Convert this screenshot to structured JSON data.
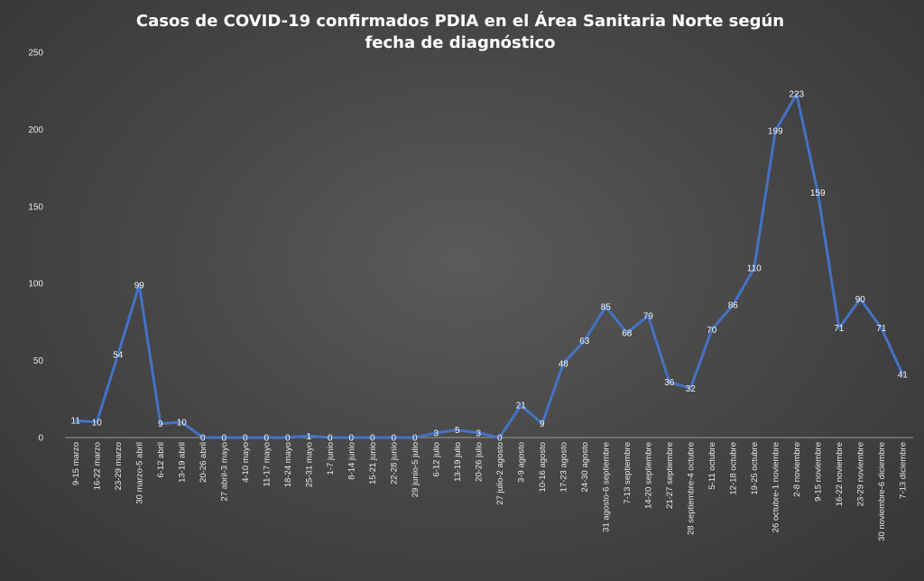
{
  "chart_data": {
    "type": "line",
    "title": "Casos de COVID-19 confirmados PDIA en el Área Sanitaria Norte según fecha de diagnóstico",
    "xlabel": "",
    "ylabel": "",
    "ylim": [
      0,
      250
    ],
    "yticks": [
      0,
      50,
      100,
      150,
      200,
      250
    ],
    "grid": false,
    "legend": "none",
    "line_color": "#4472c4",
    "categories": [
      "9-15 marzo",
      "16-22 marzo",
      "23-29 marzo",
      "30 marzo-5 abril",
      "6-12 abril",
      "13-19 abril",
      "20-26 abril",
      "27 abril-3 mayo",
      "4-10 mayo",
      "11-17 mayo",
      "18-24 mayo",
      "25-31 mayo",
      "1-7 junio",
      "8-14 junio",
      "15-21 junio",
      "22-28 junio",
      "29 junio-5 julio",
      "6-12 julio",
      "13-19 julio",
      "20-26 julio",
      "27 julio-2 agosto",
      "3-9 agosto",
      "10-16 agosto",
      "17-23 agosto",
      "24-30 agosto",
      "31 agosto-6 septiembre",
      "7-13 septiembre",
      "14-20 septiembre",
      "21-27 septiembre",
      "28 septiembre-4 octubre",
      "5-11 octubre",
      "12-18 octubre",
      "19-25 octubre",
      "26 octubre-1 noviembre",
      "2-8 noviembre",
      "9-15 noviembre",
      "16-22 noviembre",
      "23-29 noviembre",
      "30 noviembre-6 diciembre",
      "7-13 diciembre"
    ],
    "values": [
      11,
      10,
      54,
      99,
      9,
      10,
      0,
      0,
      0,
      0,
      0,
      1,
      0,
      0,
      0,
      0,
      0,
      3,
      5,
      3,
      0,
      21,
      9,
      48,
      63,
      85,
      68,
      79,
      36,
      32,
      70,
      86,
      110,
      199,
      223,
      159,
      71,
      90,
      71,
      41
    ]
  }
}
